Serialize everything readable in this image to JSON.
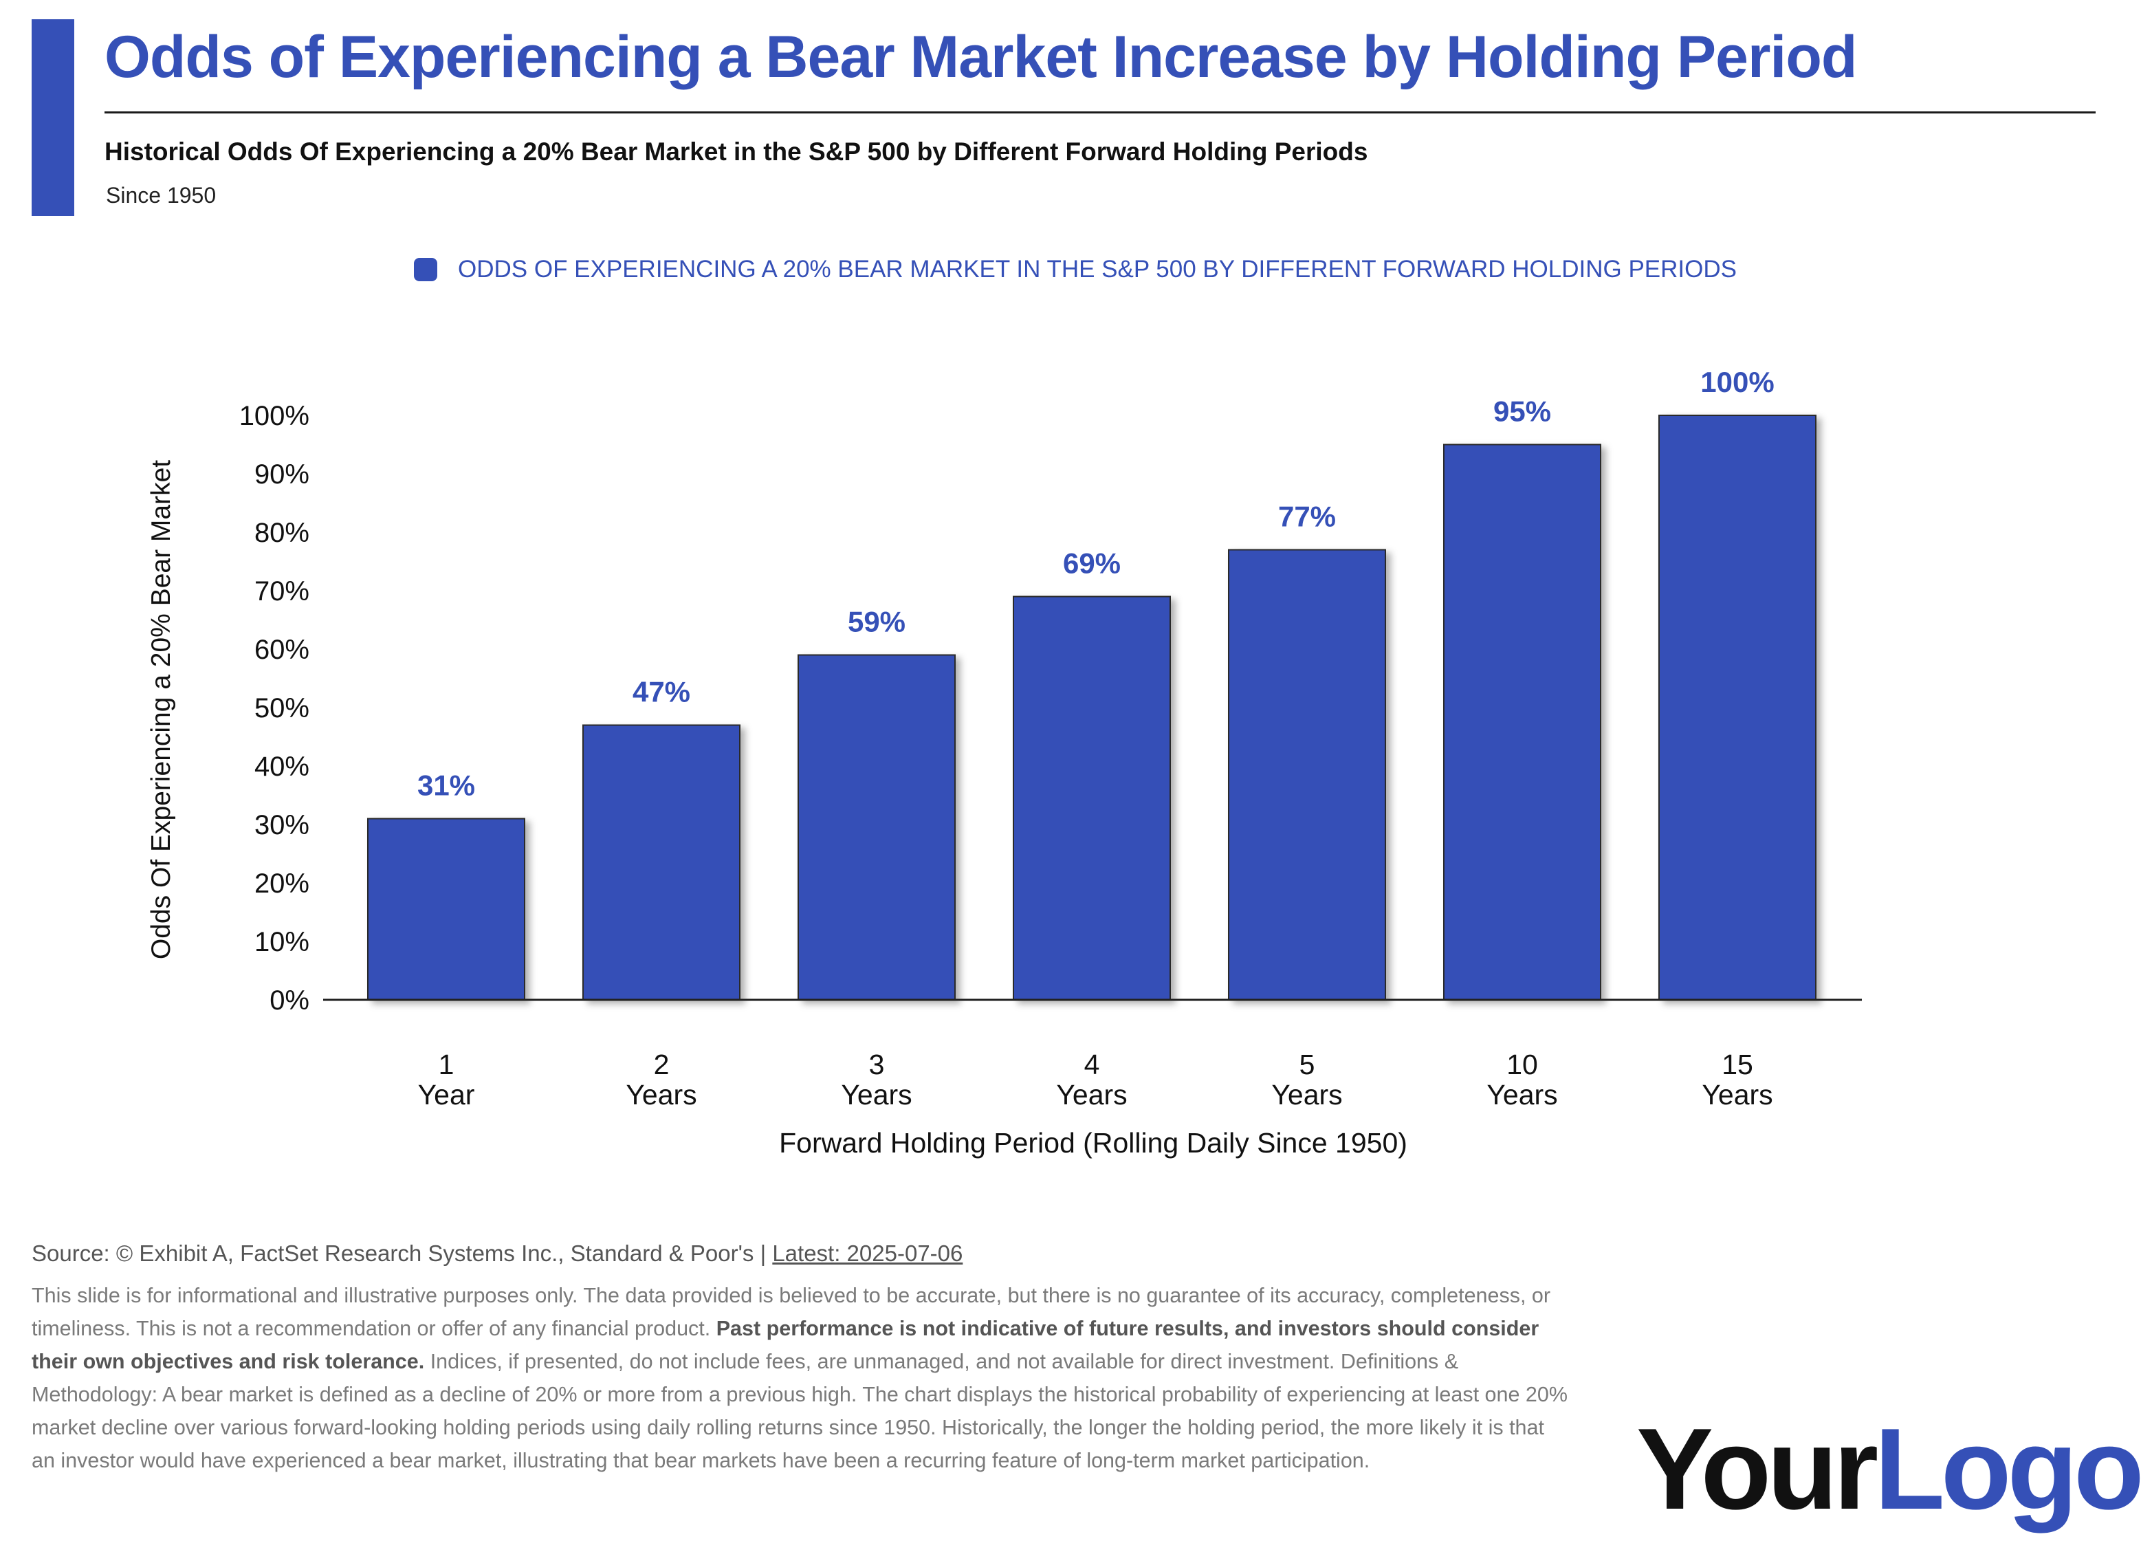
{
  "header": {
    "title": "Odds of Experiencing a Bear Market Increase by Holding Period",
    "subtitle": "Historical Odds Of Experiencing a 20% Bear Market in the S&P 500 by Different Forward Holding Periods",
    "since": "Since 1950"
  },
  "colors": {
    "accent": "#3550b7",
    "text": "#111111",
    "muted": "#7a7a7a"
  },
  "chart_data": {
    "type": "bar",
    "legend": {
      "label": "ODDS OF EXPERIENCING A 20% BEAR MARKET IN THE S&P 500 BY DIFFERENT FORWARD HOLDING PERIODS",
      "position": "top-center"
    },
    "categories": [
      {
        "num": "1",
        "unit": "Year"
      },
      {
        "num": "2",
        "unit": "Years"
      },
      {
        "num": "3",
        "unit": "Years"
      },
      {
        "num": "4",
        "unit": "Years"
      },
      {
        "num": "5",
        "unit": "Years"
      },
      {
        "num": "10",
        "unit": "Years"
      },
      {
        "num": "15",
        "unit": "Years"
      }
    ],
    "series": [
      {
        "name": "ODDS OF EXPERIENCING A 20% BEAR MARKET IN THE S&P 500 BY DIFFERENT FORWARD HOLDING PERIODS",
        "values": [
          31,
          47,
          59,
          69,
          77,
          95,
          100
        ]
      }
    ],
    "data_labels": [
      "31%",
      "47%",
      "59%",
      "69%",
      "77%",
      "95%",
      "100%"
    ],
    "ylim": [
      0,
      100
    ],
    "yticks": [
      0,
      10,
      20,
      30,
      40,
      50,
      60,
      70,
      80,
      90,
      100
    ],
    "ytick_labels": [
      "0%",
      "10%",
      "20%",
      "30%",
      "40%",
      "50%",
      "60%",
      "70%",
      "80%",
      "90%",
      "100%"
    ],
    "xlabel": "Forward Holding Period (Rolling Daily Since 1950)",
    "ylabel": "Odds Of Experiencing a 20% Bear Market",
    "grid": false
  },
  "footer": {
    "source_prefix": "Source: © Exhibit A, FactSet Research Systems Inc., Standard & Poor's | ",
    "source_latest": "Latest: 2025-07-06",
    "disclaimer_part1": "This slide is for informational and illustrative purposes only. The data provided is believed to be accurate, but there is no guarantee of its accuracy, completeness, or timeliness. This is not a recommendation or offer of any financial product. ",
    "disclaimer_bold": "Past performance is not indicative of future results, and investors should consider their own objectives and risk tolerance.",
    "disclaimer_part2": " Indices, if presented, do not include fees, are unmanaged, and not available for direct investment. Definitions & Methodology: A bear market is defined as a decline of 20% or more from a previous high. The chart displays the historical probability of experiencing at least one 20% market decline over various forward-looking holding periods using daily rolling returns since 1950. Historically, the longer the holding period, the more likely it is that an investor would have experienced a bear market, illustrating that bear markets have been a recurring feature of long-term market participation."
  },
  "logo": {
    "part1": "Your",
    "part2": "Logo."
  }
}
